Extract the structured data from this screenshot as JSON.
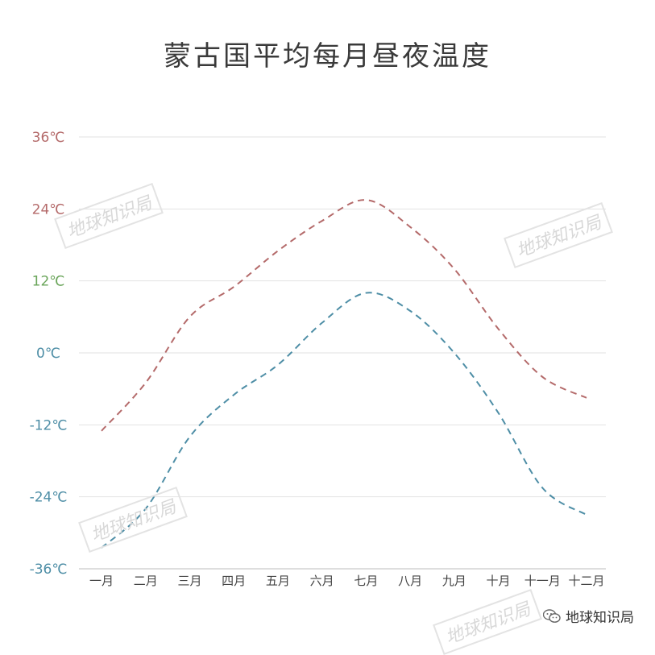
{
  "chart_data": {
    "type": "line",
    "title": "蒙古国平均每月昼夜温度",
    "categories": [
      "一月",
      "二月",
      "三月",
      "四月",
      "五月",
      "六月",
      "七月",
      "八月",
      "九月",
      "十月",
      "十一月",
      "十二月"
    ],
    "yticks": [
      {
        "label": "36℃",
        "value": 36,
        "color": "#b46a6a"
      },
      {
        "label": "24℃",
        "value": 24,
        "color": "#b46a6a"
      },
      {
        "label": "12℃",
        "value": 12,
        "color": "#6aa55a"
      },
      {
        "label": "0℃",
        "value": 0,
        "color": "#4e8ea6"
      },
      {
        "label": "-12℃",
        "value": -12,
        "color": "#4e8ea6"
      },
      {
        "label": "-24℃",
        "value": -24,
        "color": "#4e8ea6"
      },
      {
        "label": "-36℃",
        "value": -36,
        "color": "#4e8ea6"
      }
    ],
    "ylim": [
      -36,
      36
    ],
    "grid": true,
    "series": [
      {
        "values": [
          -13,
          -5,
          6,
          11,
          17,
          22,
          25.5,
          21,
          14,
          4,
          -4,
          -7.5
        ],
        "color": "#b46a6a",
        "dash": true
      },
      {
        "values": [
          -32.5,
          -26,
          -14,
          -7,
          -2,
          5,
          10,
          7,
          0,
          -10,
          -22.5,
          -27
        ],
        "color": "#4e8ea6",
        "dash": true
      }
    ]
  },
  "watermark": "地球知识局",
  "brand": {
    "label": "地球知识局",
    "icon": "wechat-icon"
  }
}
